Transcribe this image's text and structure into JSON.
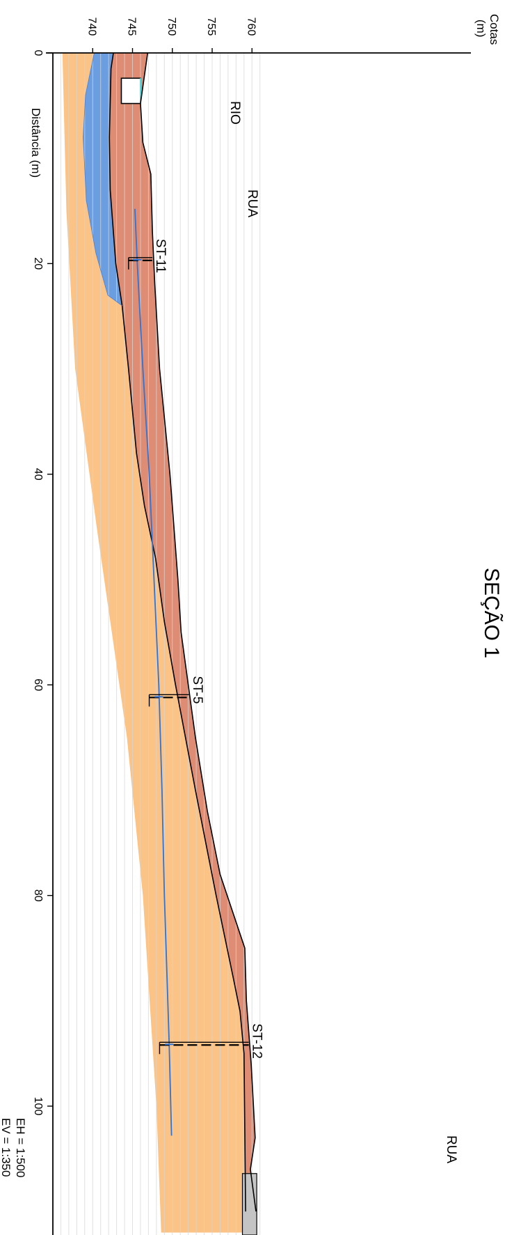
{
  "title": "SEÇÃO 1",
  "axes": {
    "elevation_label_line1": "Cotas",
    "elevation_label_line2": "(m)",
    "distance_label": "Distância (m)",
    "elevation_ticks": [
      740,
      745,
      750,
      755,
      760
    ],
    "distance_ticks": [
      0,
      20,
      40,
      60,
      80,
      100
    ]
  },
  "scales": {
    "horizontal": "EH = 1:500",
    "vertical": "EV = 1:350"
  },
  "annotations": {
    "river": "RIO",
    "street_1": "RUA",
    "street_2": "RUA"
  },
  "boreholes": [
    {
      "name": "ST-11",
      "distance": 19.5,
      "top": 747.5,
      "bottom": 744.5,
      "water": 745.6
    },
    {
      "name": "ST-5",
      "distance": 61,
      "top": 752.1,
      "bottom": 747.1,
      "water": 748.3
    },
    {
      "name": "ST-12",
      "distance": 94,
      "top": 759.6,
      "bottom": 748.4,
      "water": 749.6
    }
  ],
  "profiles": {
    "ground_surface": [
      [
        0,
        746.9
      ],
      [
        4.8,
        746.0
      ],
      [
        8.5,
        746.3
      ],
      [
        11.5,
        747.3
      ],
      [
        17,
        747.5
      ],
      [
        22,
        747.8
      ],
      [
        30,
        748.4
      ],
      [
        40,
        749.7
      ],
      [
        50,
        750.7
      ],
      [
        55,
        751.1
      ],
      [
        60,
        752.0
      ],
      [
        65,
        752.9
      ],
      [
        72,
        754.4
      ],
      [
        78,
        756.0
      ],
      [
        85,
        759.1
      ],
      [
        90,
        759.3
      ],
      [
        96,
        759.9
      ],
      [
        103,
        760.4
      ],
      [
        106,
        759.8
      ],
      [
        110,
        760.5
      ]
    ],
    "layer_boundary": [
      [
        0,
        742.6
      ],
      [
        1.5,
        742.3
      ],
      [
        8,
        742.1
      ],
      [
        13,
        742.2
      ],
      [
        20,
        742.9
      ],
      [
        24,
        743.7
      ],
      [
        30,
        744.5
      ],
      [
        38,
        745.5
      ],
      [
        43,
        746.5
      ],
      [
        48,
        747.9
      ],
      [
        54,
        749.0
      ],
      [
        60,
        750.4
      ],
      [
        70,
        752.9
      ],
      [
        80,
        755.5
      ],
      [
        88,
        757.7
      ],
      [
        91,
        758.5
      ],
      [
        95,
        759.0
      ],
      [
        110,
        759.2
      ]
    ],
    "water_table": [
      [
        14.8,
        745.3
      ],
      [
        20,
        745.6
      ],
      [
        30,
        746.3
      ],
      [
        40,
        747.1
      ],
      [
        50,
        747.7
      ],
      [
        60,
        748.3
      ],
      [
        70,
        748.7
      ],
      [
        80,
        749.0
      ],
      [
        94,
        749.6
      ],
      [
        102.8,
        749.9
      ]
    ],
    "blue_zone": [
      [
        0,
        740.2
      ],
      [
        4,
        739.1
      ],
      [
        8,
        738.8
      ],
      [
        14,
        739.2
      ],
      [
        19,
        740.4
      ],
      [
        23,
        741.9
      ],
      [
        24,
        743.7
      ],
      [
        20,
        742.9
      ],
      [
        13,
        742.2
      ],
      [
        8,
        742.1
      ],
      [
        1.5,
        742.3
      ],
      [
        0,
        742.6
      ]
    ],
    "orange_base": [
      [
        0,
        736.2
      ],
      [
        15,
        736.7
      ],
      [
        30,
        737.8
      ],
      [
        45,
        740.5
      ],
      [
        65,
        744.3
      ],
      [
        80,
        746.3
      ],
      [
        100,
        748.0
      ],
      [
        110,
        748.5
      ]
    ],
    "river_channel": {
      "x0": 2.4,
      "x1": 4.8,
      "bottom": 743.6,
      "water_level": 746.0
    },
    "building_block": {
      "x0": 106.4,
      "x1": 112,
      "bottom": 758.8,
      "top": 760.6
    }
  },
  "colors": {
    "upper_layer": "#de8d74",
    "lower_layer": "#fbc385",
    "saturated_zone": "#6a9ee0",
    "water_table": "#2f73d4",
    "river_water": "#3ee6ee",
    "block": "#c4c4c4",
    "grid": "#d6d6d6"
  }
}
